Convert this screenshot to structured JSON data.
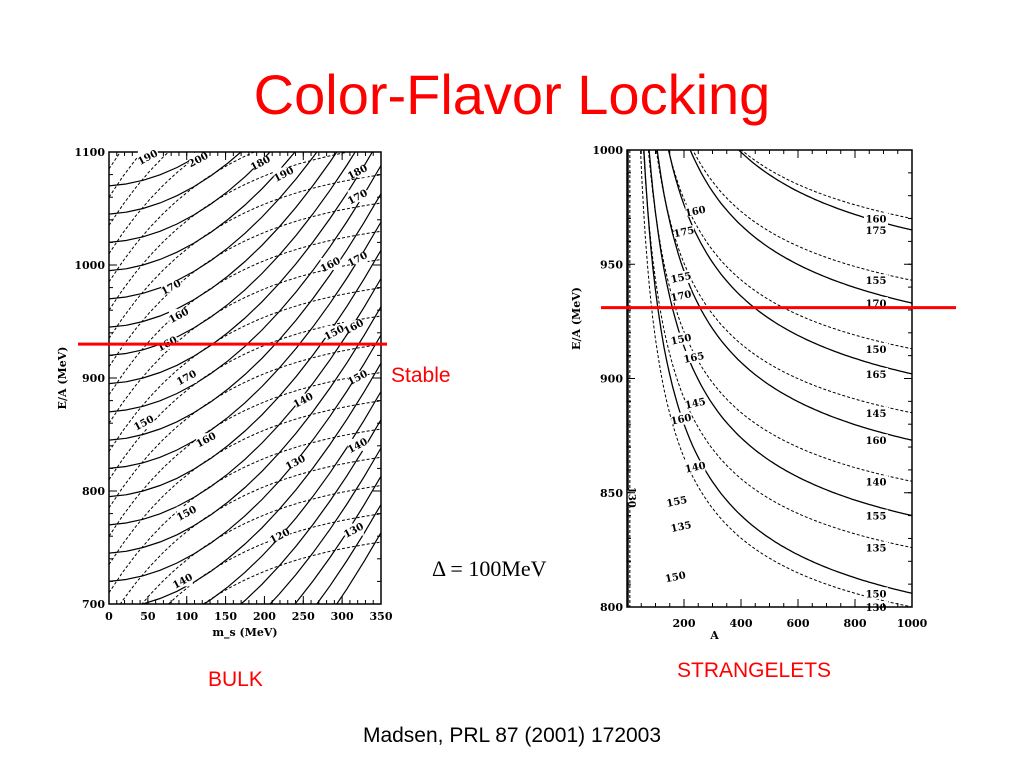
{
  "slide": {
    "title": "Color-Flavor Locking",
    "stable_label": "Stable",
    "bulk_label": "BULK",
    "strangelets_label": "STRANGELETS",
    "delta_label": "Δ = 100MeV",
    "citation": "Madsen, PRL 87 (2001) 172003",
    "accent_color": "#ff0000"
  },
  "chart_data": [
    {
      "type": "line",
      "name": "bulk",
      "xlabel": "m_s (MeV)",
      "ylabel": "E/A (MeV)",
      "xlim": [
        0,
        350
      ],
      "ylim": [
        700,
        1100
      ],
      "xticks": [
        0,
        50,
        100,
        150,
        200,
        250,
        300,
        350
      ],
      "yticks": [
        700,
        800,
        900,
        1000,
        1100
      ],
      "reference_line_y": 930,
      "contour_labels": [
        {
          "text": "190",
          "x": 50,
          "y": 1095
        },
        {
          "text": "200",
          "x": 115,
          "y": 1093
        },
        {
          "text": "180",
          "x": 195,
          "y": 1090
        },
        {
          "text": "190",
          "x": 225,
          "y": 1080
        },
        {
          "text": "180",
          "x": 320,
          "y": 1082
        },
        {
          "text": "170",
          "x": 320,
          "y": 1060
        },
        {
          "text": "170",
          "x": 320,
          "y": 1005
        },
        {
          "text": "160",
          "x": 285,
          "y": 1000
        },
        {
          "text": "170",
          "x": 80,
          "y": 980
        },
        {
          "text": "160",
          "x": 90,
          "y": 955
        },
        {
          "text": "150",
          "x": 290,
          "y": 940
        },
        {
          "text": "160",
          "x": 315,
          "y": 945
        },
        {
          "text": "160",
          "x": 75,
          "y": 930
        },
        {
          "text": "170",
          "x": 100,
          "y": 900
        },
        {
          "text": "150",
          "x": 320,
          "y": 900
        },
        {
          "text": "140",
          "x": 250,
          "y": 880
        },
        {
          "text": "150",
          "x": 45,
          "y": 860
        },
        {
          "text": "160",
          "x": 125,
          "y": 845
        },
        {
          "text": "140",
          "x": 320,
          "y": 840
        },
        {
          "text": "130",
          "x": 240,
          "y": 825
        },
        {
          "text": "150",
          "x": 100,
          "y": 780
        },
        {
          "text": "130",
          "x": 315,
          "y": 765
        },
        {
          "text": "120",
          "x": 220,
          "y": 760
        },
        {
          "text": "140",
          "x": 95,
          "y": 720
        }
      ]
    },
    {
      "type": "line",
      "name": "strangelets",
      "xlabel": "A",
      "ylabel": "E/A (MeV)",
      "xlim": [
        0,
        1000
      ],
      "ylim": [
        800,
        1000
      ],
      "xticks": [
        200,
        400,
        600,
        800,
        1000
      ],
      "yticks": [
        800,
        850,
        900,
        950,
        1000
      ],
      "reference_line_y": 931,
      "series": [
        {
          "name": "160",
          "style": "dotted",
          "end": 970
        },
        {
          "name": "175",
          "style": "solid",
          "end": 965
        },
        {
          "name": "155",
          "style": "dotted",
          "end": 943
        },
        {
          "name": "170",
          "style": "solid",
          "end": 933
        },
        {
          "name": "150",
          "style": "dotted",
          "end": 913
        },
        {
          "name": "165",
          "style": "solid",
          "end": 902
        },
        {
          "name": "145",
          "style": "dotted",
          "end": 885
        },
        {
          "name": "160",
          "style": "solid",
          "end": 873
        },
        {
          "name": "140",
          "style": "dotted",
          "end": 855
        },
        {
          "name": "155",
          "style": "solid",
          "end": 840
        },
        {
          "name": "135",
          "style": "dotted",
          "end": 826
        },
        {
          "name": "150",
          "style": "solid",
          "end": 806
        },
        {
          "name": "130",
          "style": "dotted",
          "end": 800
        }
      ],
      "extra_labels": [
        {
          "text": "160",
          "x": 240,
          "y": 973
        },
        {
          "text": "175",
          "x": 200,
          "y": 964
        },
        {
          "text": "155",
          "x": 190,
          "y": 944
        },
        {
          "text": "170",
          "x": 190,
          "y": 936
        },
        {
          "text": "150",
          "x": 190,
          "y": 917
        },
        {
          "text": "165",
          "x": 235,
          "y": 909
        },
        {
          "text": "145",
          "x": 240,
          "y": 889
        },
        {
          "text": "160",
          "x": 190,
          "y": 882
        },
        {
          "text": "140",
          "x": 240,
          "y": 861
        },
        {
          "text": "155",
          "x": 175,
          "y": 846
        },
        {
          "text": "135",
          "x": 190,
          "y": 835
        },
        {
          "text": "150",
          "x": 170,
          "y": 813
        },
        {
          "text": "130",
          "x": 15,
          "y": 848
        }
      ]
    }
  ]
}
